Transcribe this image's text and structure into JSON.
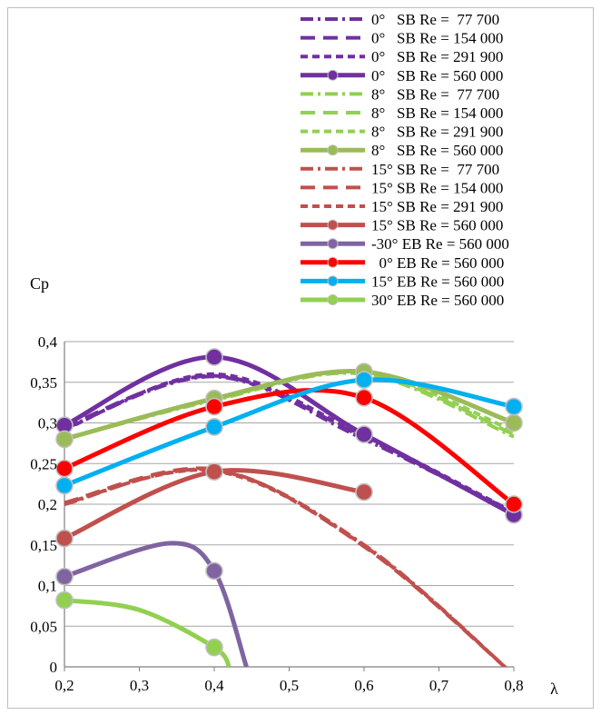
{
  "chart_data": {
    "type": "line",
    "xlabel": "λ",
    "ylabel": "Cp",
    "xlim": [
      0.2,
      0.8
    ],
    "ylim": [
      0,
      0.4
    ],
    "grid": true,
    "legend_position": "top-right",
    "x_ticks": [
      "0,2",
      "0,3",
      "0,4",
      "0,5",
      "0,6",
      "0,7",
      "0,8"
    ],
    "y_ticks": [
      "0",
      "0,05",
      "0,1",
      "0,15",
      "0,2",
      "0,25",
      "0,3",
      "0,35",
      "0,4"
    ],
    "series": [
      {
        "name": "0°  SB Re =  77 700",
        "legend_text": "0°   SB Re =  77 700",
        "color": "#7030a0",
        "dash": "dashdot",
        "marker": false,
        "width": 4,
        "x": [
          0.2,
          0.4,
          0.6,
          0.8
        ],
        "y": [
          0.293,
          0.357,
          0.28,
          0.19
        ]
      },
      {
        "name": "0°  SB Re = 154 000",
        "legend_text": "0°   SB Re = 154 000",
        "color": "#7030a0",
        "dash": "longdash",
        "marker": false,
        "width": 4,
        "x": [
          0.2,
          0.4,
          0.6,
          0.8
        ],
        "y": [
          0.295,
          0.358,
          0.282,
          0.188
        ]
      },
      {
        "name": "0°  SB Re = 291 900",
        "legend_text": "0°   SB Re = 291 900",
        "color": "#7030a0",
        "dash": "shortdash",
        "marker": false,
        "width": 4,
        "x": [
          0.2,
          0.4,
          0.6,
          0.8
        ],
        "y": [
          0.292,
          0.36,
          0.284,
          0.19
        ]
      },
      {
        "name": "0°  SB Re = 560 000",
        "legend_text": "0°   SB Re = 560 000",
        "color": "#7030a0",
        "dash": "solid",
        "marker": true,
        "width": 5,
        "x": [
          0.2,
          0.4,
          0.6,
          0.8
        ],
        "y": [
          0.297,
          0.381,
          0.286,
          0.187
        ]
      },
      {
        "name": "8°  SB Re =  77 700",
        "legend_text": "8°   SB Re =  77 700",
        "color": "#92d050",
        "dash": "dashdot",
        "marker": false,
        "width": 4,
        "x": [
          0.2,
          0.4,
          0.6,
          0.8
        ],
        "y": [
          0.28,
          0.328,
          0.36,
          0.283
        ]
      },
      {
        "name": "8°  SB Re = 154 000",
        "legend_text": "8°   SB Re = 154 000",
        "color": "#92d050",
        "dash": "longdash",
        "marker": false,
        "width": 4,
        "x": [
          0.2,
          0.4,
          0.6,
          0.8
        ],
        "y": [
          0.281,
          0.329,
          0.361,
          0.286
        ]
      },
      {
        "name": "8°  SB Re = 291 900",
        "legend_text": "8°   SB Re = 291 900",
        "color": "#92d050",
        "dash": "shortdash",
        "marker": false,
        "width": 4,
        "x": [
          0.2,
          0.4,
          0.6,
          0.8
        ],
        "y": [
          0.28,
          0.33,
          0.362,
          0.29
        ]
      },
      {
        "name": "8°  SB Re = 560 000",
        "legend_text": "8°   SB Re = 560 000",
        "color": "#9bbb59",
        "dash": "solid",
        "marker": true,
        "width": 5,
        "x": [
          0.2,
          0.4,
          0.6,
          0.8
        ],
        "y": [
          0.28,
          0.33,
          0.363,
          0.3
        ]
      },
      {
        "name": "15° SB Re =  77 700",
        "legend_text": "15° SB Re =  77 700",
        "color": "#c0504d",
        "dash": "dashdot",
        "marker": false,
        "width": 4,
        "x": [
          0.2,
          0.4,
          0.6,
          0.8
        ],
        "y": [
          0.2,
          0.242,
          0.15,
          -0.01
        ]
      },
      {
        "name": "15° SB Re = 154 000",
        "legend_text": "15° SB Re = 154 000",
        "color": "#c0504d",
        "dash": "longdash",
        "marker": false,
        "width": 4,
        "x": [
          0.2,
          0.4,
          0.6,
          0.8
        ],
        "y": [
          0.202,
          0.243,
          0.148,
          -0.01
        ]
      },
      {
        "name": "15° SB Re = 291 900",
        "legend_text": "15° SB Re = 291 900",
        "color": "#c0504d",
        "dash": "shortdash",
        "marker": false,
        "width": 4,
        "x": [
          0.2,
          0.4,
          0.6,
          0.8
        ],
        "y": [
          0.201,
          0.241,
          0.149,
          -0.01
        ]
      },
      {
        "name": "15° SB Re = 560 000",
        "legend_text": "15° SB Re = 560 000",
        "color": "#c0504d",
        "dash": "solid",
        "marker": true,
        "width": 5,
        "x": [
          0.2,
          0.4,
          0.6
        ],
        "y": [
          0.158,
          0.24,
          0.215
        ]
      },
      {
        "name": "-30° EB Re = 560 000",
        "legend_text": "-30° EB Re = 560 000",
        "color": "#8064a2",
        "dash": "solid",
        "marker": true,
        "width": 5,
        "x": [
          0.2,
          0.34,
          0.4,
          0.443
        ],
        "y": [
          0.111,
          0.152,
          0.118,
          0
        ],
        "marker_idx": [
          0,
          2
        ],
        "clip_last": true
      },
      {
        "name": "0° EB Re = 560 000",
        "legend_text": "  0° EB Re = 560 000",
        "color": "#ff0000",
        "dash": "solid",
        "marker": true,
        "width": 5,
        "x": [
          0.2,
          0.4,
          0.6,
          0.8
        ],
        "y": [
          0.244,
          0.32,
          0.331,
          0.2
        ]
      },
      {
        "name": "15° EB Re = 560 000",
        "legend_text": "15° EB Re = 560 000",
        "color": "#00b0f0",
        "dash": "solid",
        "marker": true,
        "width": 5,
        "x": [
          0.2,
          0.4,
          0.6,
          0.8
        ],
        "y": [
          0.223,
          0.295,
          0.353,
          0.32
        ]
      },
      {
        "name": "30° EB Re = 560 000",
        "legend_text": "30° EB Re = 560 000",
        "color": "#92d050",
        "dash": "solid",
        "marker": true,
        "width": 5,
        "x": [
          0.2,
          0.3,
          0.4,
          0.42
        ],
        "y": [
          0.082,
          0.07,
          0.024,
          0
        ],
        "marker_idx": [
          0,
          2
        ],
        "clip_last": true
      }
    ]
  }
}
